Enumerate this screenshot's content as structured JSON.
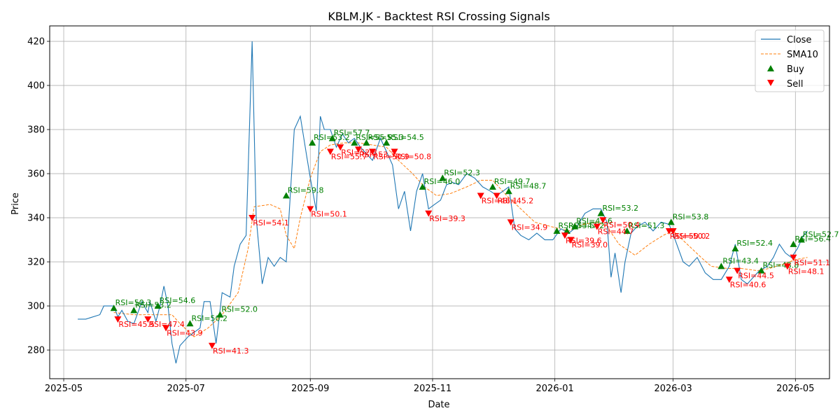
{
  "chart_data": {
    "type": "line",
    "title": "KBLM.JK - Backtest RSI Crossing Signals",
    "xlabel": "Date",
    "ylabel": "Price",
    "x_ticks": [
      "2025-05",
      "2025-07",
      "2025-09",
      "2025-11",
      "2026-01",
      "2026-03",
      "2026-05"
    ],
    "y_ticks": [
      280,
      300,
      320,
      340,
      360,
      380,
      400,
      420
    ],
    "ylim": [
      267,
      427
    ],
    "xlim": [
      "2025-04-24",
      "2026-05-18"
    ],
    "grid": true,
    "legend_position": "top-right",
    "legend": [
      "Close",
      "SMA10",
      "Buy",
      "Sell"
    ],
    "colors": {
      "close": "#1f77b4",
      "sma": "#ff7f0e",
      "buy": "#008000",
      "sell": "#ff0000"
    },
    "close": [
      [
        "2025-05-08",
        294
      ],
      [
        "2025-05-12",
        294
      ],
      [
        "2025-05-19",
        296
      ],
      [
        "2025-05-21",
        300
      ],
      [
        "2025-05-26",
        300
      ],
      [
        "2025-05-28",
        295
      ],
      [
        "2025-05-30",
        298
      ],
      [
        "2025-06-02",
        293
      ],
      [
        "2025-06-05",
        292
      ],
      [
        "2025-06-09",
        302
      ],
      [
        "2025-06-12",
        297
      ],
      [
        "2025-06-13",
        302
      ],
      [
        "2025-06-16",
        293
      ],
      [
        "2025-06-18",
        300
      ],
      [
        "2025-06-20",
        309
      ],
      [
        "2025-06-22",
        300
      ],
      [
        "2025-06-24",
        283
      ],
      [
        "2025-06-26",
        274
      ],
      [
        "2025-06-28",
        282
      ],
      [
        "2025-07-02",
        286
      ],
      [
        "2025-07-05",
        288
      ],
      [
        "2025-07-08",
        290
      ],
      [
        "2025-07-10",
        302
      ],
      [
        "2025-07-13",
        302
      ],
      [
        "2025-07-16",
        283
      ],
      [
        "2025-07-19",
        306
      ],
      [
        "2025-07-23",
        304
      ],
      [
        "2025-07-25",
        318
      ],
      [
        "2025-07-28",
        328
      ],
      [
        "2025-07-31",
        332
      ],
      [
        "2025-08-03",
        420
      ],
      [
        "2025-08-05",
        340
      ],
      [
        "2025-08-08",
        310
      ],
      [
        "2025-08-11",
        322
      ],
      [
        "2025-08-14",
        318
      ],
      [
        "2025-08-17",
        322
      ],
      [
        "2025-08-20",
        320
      ],
      [
        "2025-08-24",
        380
      ],
      [
        "2025-08-27",
        386
      ],
      [
        "2025-08-30",
        369
      ],
      [
        "2025-09-01",
        358
      ],
      [
        "2025-09-04",
        343
      ],
      [
        "2025-09-06",
        386
      ],
      [
        "2025-09-08",
        380
      ],
      [
        "2025-09-11",
        380
      ],
      [
        "2025-09-14",
        372
      ],
      [
        "2025-09-17",
        378
      ],
      [
        "2025-09-20",
        374
      ],
      [
        "2025-09-23",
        376
      ],
      [
        "2025-09-26",
        372
      ],
      [
        "2025-09-29",
        369
      ],
      [
        "2025-10-02",
        366
      ],
      [
        "2025-10-06",
        376
      ],
      [
        "2025-10-09",
        370
      ],
      [
        "2025-10-12",
        364
      ],
      [
        "2025-10-15",
        344
      ],
      [
        "2025-10-18",
        352
      ],
      [
        "2025-10-21",
        334
      ],
      [
        "2025-10-24",
        352
      ],
      [
        "2025-10-27",
        360
      ],
      [
        "2025-10-30",
        344
      ],
      [
        "2025-11-02",
        346
      ],
      [
        "2025-11-05",
        348
      ],
      [
        "2025-11-08",
        355
      ],
      [
        "2025-11-11",
        356
      ],
      [
        "2025-11-14",
        355
      ],
      [
        "2025-11-18",
        360
      ],
      [
        "2025-11-22",
        358
      ],
      [
        "2025-11-26",
        354
      ],
      [
        "2025-11-30",
        352
      ],
      [
        "2025-12-03",
        350
      ],
      [
        "2025-12-06",
        352
      ],
      [
        "2025-12-09",
        354
      ],
      [
        "2025-12-12",
        335
      ],
      [
        "2025-12-15",
        332
      ],
      [
        "2025-12-19",
        330
      ],
      [
        "2025-12-23",
        333
      ],
      [
        "2025-12-27",
        330
      ],
      [
        "2025-12-31",
        330
      ],
      [
        "2026-01-04",
        335
      ],
      [
        "2026-01-08",
        333
      ],
      [
        "2026-01-12",
        336
      ],
      [
        "2026-01-16",
        342
      ],
      [
        "2026-01-20",
        344
      ],
      [
        "2026-01-24",
        344
      ],
      [
        "2026-01-27",
        338
      ],
      [
        "2026-01-29",
        313
      ],
      [
        "2026-01-31",
        324
      ],
      [
        "2026-02-03",
        306
      ],
      [
        "2026-02-05",
        320
      ],
      [
        "2026-02-08",
        333
      ],
      [
        "2026-02-11",
        336
      ],
      [
        "2026-02-15",
        338
      ],
      [
        "2026-02-19",
        334
      ],
      [
        "2026-02-23",
        338
      ],
      [
        "2026-02-27",
        337
      ],
      [
        "2026-03-02",
        330
      ],
      [
        "2026-03-06",
        320
      ],
      [
        "2026-03-09",
        318
      ],
      [
        "2026-03-13",
        322
      ],
      [
        "2026-03-17",
        315
      ],
      [
        "2026-03-21",
        312
      ],
      [
        "2026-03-25",
        312
      ],
      [
        "2026-03-29",
        318
      ],
      [
        "2026-04-01",
        328
      ],
      [
        "2026-04-04",
        312
      ],
      [
        "2026-04-07",
        310
      ],
      [
        "2026-04-10",
        313
      ],
      [
        "2026-04-13",
        316
      ],
      [
        "2026-04-17",
        318
      ],
      [
        "2026-04-20",
        322
      ],
      [
        "2026-04-23",
        328
      ],
      [
        "2026-04-26",
        324
      ],
      [
        "2026-04-29",
        322
      ],
      [
        "2026-05-02",
        326
      ],
      [
        "2026-05-05",
        332
      ],
      [
        "2026-05-07",
        334
      ]
    ],
    "sma10": [
      [
        "2025-05-26",
        297
      ],
      [
        "2025-06-05",
        296
      ],
      [
        "2025-06-16",
        296
      ],
      [
        "2025-06-24",
        296
      ],
      [
        "2025-06-28",
        292
      ],
      [
        "2025-07-05",
        286
      ],
      [
        "2025-07-12",
        290
      ],
      [
        "2025-07-19",
        296
      ],
      [
        "2025-07-27",
        306
      ],
      [
        "2025-08-01",
        326
      ],
      [
        "2025-08-04",
        345
      ],
      [
        "2025-08-12",
        346
      ],
      [
        "2025-08-17",
        344
      ],
      [
        "2025-08-20",
        332
      ],
      [
        "2025-08-24",
        326
      ],
      [
        "2025-08-27",
        340
      ],
      [
        "2025-09-01",
        358
      ],
      [
        "2025-09-06",
        370
      ],
      [
        "2025-09-11",
        373
      ],
      [
        "2025-09-18",
        374
      ],
      [
        "2025-09-25",
        374
      ],
      [
        "2025-10-02",
        373
      ],
      [
        "2025-10-09",
        372
      ],
      [
        "2025-10-15",
        366
      ],
      [
        "2025-10-22",
        360
      ],
      [
        "2025-10-28",
        354
      ],
      [
        "2025-11-03",
        350
      ],
      [
        "2025-11-10",
        351
      ],
      [
        "2025-11-18",
        354
      ],
      [
        "2025-11-25",
        357
      ],
      [
        "2025-12-01",
        357
      ],
      [
        "2025-12-08",
        350
      ],
      [
        "2025-12-15",
        344
      ],
      [
        "2025-12-22",
        338
      ],
      [
        "2025-12-30",
        336
      ],
      [
        "2026-01-08",
        334
      ],
      [
        "2026-01-15",
        337
      ],
      [
        "2026-01-22",
        338
      ],
      [
        "2026-01-27",
        336
      ],
      [
        "2026-02-02",
        328
      ],
      [
        "2026-02-10",
        323
      ],
      [
        "2026-02-17",
        328
      ],
      [
        "2026-02-24",
        332
      ],
      [
        "2026-03-01",
        334
      ],
      [
        "2026-03-08",
        328
      ],
      [
        "2026-03-15",
        322
      ],
      [
        "2026-03-20",
        318
      ],
      [
        "2026-03-28",
        317
      ],
      [
        "2026-04-04",
        317
      ],
      [
        "2026-04-12",
        316
      ],
      [
        "2026-04-18",
        317
      ],
      [
        "2026-04-25",
        319
      ],
      [
        "2026-05-01",
        321
      ],
      [
        "2026-05-07",
        322
      ]
    ],
    "buy_signals": [
      {
        "date": "2025-05-26",
        "price": 299,
        "label": "RSI=50.3"
      },
      {
        "date": "2025-06-05",
        "price": 298,
        "label": "RSI=53.2"
      },
      {
        "date": "2025-06-17",
        "price": 300,
        "label": "RSI=54.6"
      },
      {
        "date": "2025-07-03",
        "price": 292,
        "label": "RSI=50.2"
      },
      {
        "date": "2025-07-18",
        "price": 296,
        "label": "RSI=52.0"
      },
      {
        "date": "2025-08-20",
        "price": 350,
        "label": "RSI=59.8"
      },
      {
        "date": "2025-09-02",
        "price": 374,
        "label": "RSI=53.2"
      },
      {
        "date": "2025-09-12",
        "price": 376,
        "label": "RSI=57.7"
      },
      {
        "date": "2025-09-23",
        "price": 374,
        "label": "RSI=55.5"
      },
      {
        "date": "2025-09-29",
        "price": 374,
        "label": "RSI=55.3"
      },
      {
        "date": "2025-10-09",
        "price": 374,
        "label": "RSI=54.5"
      },
      {
        "date": "2025-10-27",
        "price": 354,
        "label": "RSI=46.0"
      },
      {
        "date": "2025-11-06",
        "price": 358,
        "label": "RSI=52.3"
      },
      {
        "date": "2025-12-01",
        "price": 354,
        "label": "RSI=49.7"
      },
      {
        "date": "2025-12-09",
        "price": 352,
        "label": "RSI=48.7"
      },
      {
        "date": "2026-01-02",
        "price": 334,
        "label": "RSI=53.5"
      },
      {
        "date": "2026-01-07",
        "price": 334,
        "label": "RSI=47.2"
      },
      {
        "date": "2026-01-11",
        "price": 336,
        "label": "RSI=47.6"
      },
      {
        "date": "2026-01-24",
        "price": 342,
        "label": "RSI=53.2"
      },
      {
        "date": "2026-02-06",
        "price": 334,
        "label": "RSI=51.3"
      },
      {
        "date": "2026-02-28",
        "price": 338,
        "label": "RSI=53.8"
      },
      {
        "date": "2026-03-25",
        "price": 318,
        "label": "RSI=43.4"
      },
      {
        "date": "2026-04-01",
        "price": 326,
        "label": "RSI=52.4"
      },
      {
        "date": "2026-04-14",
        "price": 316,
        "label": "RSI=48.8"
      },
      {
        "date": "2026-04-30",
        "price": 328,
        "label": "RSI=56.4"
      },
      {
        "date": "2026-05-04",
        "price": 330,
        "label": "RSI=52.7"
      }
    ],
    "sell_signals": [
      {
        "date": "2025-05-28",
        "price": 294,
        "label": "RSI=45.5"
      },
      {
        "date": "2025-06-12",
        "price": 294,
        "label": "RSI=47.4"
      },
      {
        "date": "2025-06-21",
        "price": 290,
        "label": "RSI=43.9"
      },
      {
        "date": "2025-07-14",
        "price": 282,
        "label": "RSI=41.3"
      },
      {
        "date": "2025-08-03",
        "price": 340,
        "label": "RSI=54.1"
      },
      {
        "date": "2025-09-01",
        "price": 344,
        "label": "RSI=50.1"
      },
      {
        "date": "2025-09-11",
        "price": 370,
        "label": "RSI=55.7"
      },
      {
        "date": "2025-09-16",
        "price": 372,
        "label": "RSI=52.3"
      },
      {
        "date": "2025-09-25",
        "price": 371,
        "label": "RSI=53.3"
      },
      {
        "date": "2025-10-02",
        "price": 370,
        "label": "RSI=50.9"
      },
      {
        "date": "2025-10-13",
        "price": 370,
        "label": "RSI=50.8"
      },
      {
        "date": "2025-10-30",
        "price": 342,
        "label": "RSI=39.3"
      },
      {
        "date": "2025-11-25",
        "price": 350,
        "label": "RSI=46.1"
      },
      {
        "date": "2025-12-03",
        "price": 350,
        "label": "RSI=45.2"
      },
      {
        "date": "2025-12-10",
        "price": 338,
        "label": "RSI=34.9"
      },
      {
        "date": "2026-01-06",
        "price": 332,
        "label": "RSI=39.6"
      },
      {
        "date": "2026-01-09",
        "price": 330,
        "label": "RSI=39.0"
      },
      {
        "date": "2026-01-22",
        "price": 336,
        "label": "RSI=44.7"
      },
      {
        "date": "2026-01-25",
        "price": 339,
        "label": "RSI=50.4"
      },
      {
        "date": "2026-02-27",
        "price": 334,
        "label": "RSI=50.0"
      },
      {
        "date": "2026-03-01",
        "price": 334,
        "label": "RSI=50.2"
      },
      {
        "date": "2026-03-29",
        "price": 312,
        "label": "RSI=40.6"
      },
      {
        "date": "2026-04-02",
        "price": 316,
        "label": "RSI=44.5"
      },
      {
        "date": "2026-04-27",
        "price": 318,
        "label": "RSI=48.1"
      },
      {
        "date": "2026-04-30",
        "price": 322,
        "label": "RSI=51.1"
      }
    ]
  }
}
